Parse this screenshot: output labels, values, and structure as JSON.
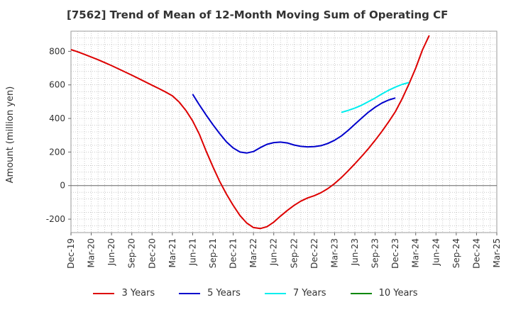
{
  "chart_data": {
    "type": "line",
    "title": "[7562]  Trend of Mean of 12-Month Moving Sum of Operating CF",
    "xlabel": "",
    "ylabel": "Amount (million yen)",
    "ylim": [
      -280,
      920
    ],
    "yticks": [
      -200,
      0,
      200,
      400,
      600,
      800
    ],
    "x_tick_labels": [
      "Dec-19",
      "Mar-20",
      "Jun-20",
      "Sep-20",
      "Dec-20",
      "Mar-21",
      "Jun-21",
      "Sep-21",
      "Dec-21",
      "Mar-22",
      "Jun-22",
      "Sep-22",
      "Dec-22",
      "Mar-23",
      "Jun-23",
      "Sep-23",
      "Dec-23",
      "Mar-24",
      "Jun-24",
      "Sep-24",
      "Dec-24",
      "Mar-25"
    ],
    "x_index_range": [
      0,
      63
    ],
    "grid": true,
    "series": [
      {
        "name": "3 Years",
        "color": "#dd0000",
        "start_index": 0,
        "values": [
          810,
          797,
          782,
          766,
          750,
          733,
          715,
          696,
          677,
          658,
          638,
          618,
          598,
          578,
          558,
          535,
          498,
          448,
          386,
          305,
          205,
          112,
          25,
          -50,
          -118,
          -178,
          -223,
          -250,
          -256,
          -245,
          -218,
          -182,
          -148,
          -118,
          -93,
          -74,
          -60,
          -42,
          -18,
          12,
          48,
          88,
          130,
          174,
          220,
          270,
          323,
          380,
          441,
          518,
          605,
          700,
          808,
          895
        ]
      },
      {
        "name": "5 Years",
        "color": "#0000cc",
        "start_index": 18,
        "values": [
          545,
          480,
          420,
          363,
          310,
          261,
          224,
          200,
          194,
          203,
          226,
          246,
          256,
          259,
          254,
          242,
          234,
          231,
          232,
          238,
          251,
          270,
          296,
          329,
          365,
          402,
          437,
          467,
          492,
          510,
          522
        ]
      },
      {
        "name": "7 Years",
        "color": "#00eeee",
        "start_index": 40,
        "values": [
          436,
          448,
          462,
          479,
          500,
          522,
          546,
          568,
          587,
          603,
          614
        ]
      },
      {
        "name": "10 Years",
        "color": "#008800",
        "start_index": 0,
        "values": []
      }
    ]
  }
}
